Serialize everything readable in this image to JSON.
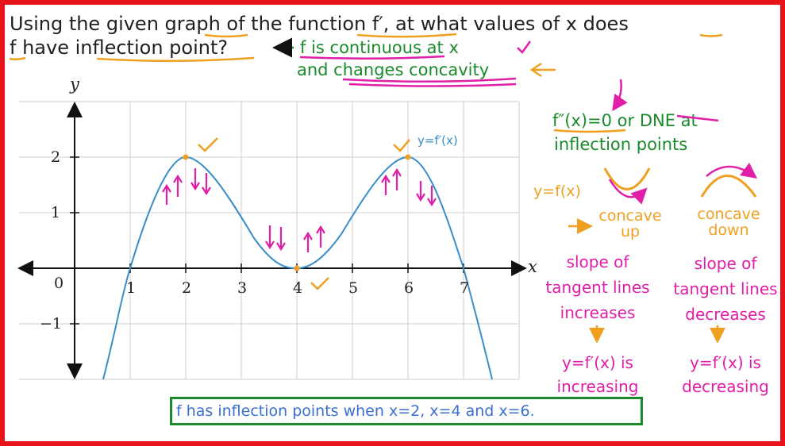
{
  "question": {
    "line1": "Using the given graph of the function f′, at what values of x does",
    "line2": "f have inflection point?"
  },
  "conditions": {
    "continuous": "f is continuous at x",
    "changes": "and changes concavity"
  },
  "rule": {
    "line1": "f″(x)=0  or  DNE  at",
    "line2": "inflection points"
  },
  "concavity": {
    "function_label": "y=f(x)",
    "up_label": "concave up",
    "down_label": "concave down"
  },
  "slopes": {
    "left": [
      "slope of",
      "tangent lines",
      "increases"
    ],
    "right": [
      "slope of",
      "tangent lines",
      "decreases"
    ],
    "left_derivative": [
      "y=f′(x) is",
      "increasing"
    ],
    "right_derivative": [
      "y=f′(x) is",
      "decreasing"
    ]
  },
  "graph": {
    "curve_label": "y=f′(x)",
    "x_axis_label": "x",
    "y_axis_label": "y",
    "origin_label": "0",
    "x_ticks": [
      "1",
      "2",
      "3",
      "4",
      "5",
      "6",
      "7"
    ],
    "y_ticks": [
      "2",
      "1",
      "−1"
    ]
  },
  "answer": "f has inflection points when x=2, x=4 and x=6.",
  "colors": {
    "frame": "#e8141b",
    "curve": "#3a8ec8",
    "green": "#1a8a2a",
    "magenta": "#e01ea8",
    "orange": "#f0a020"
  }
}
